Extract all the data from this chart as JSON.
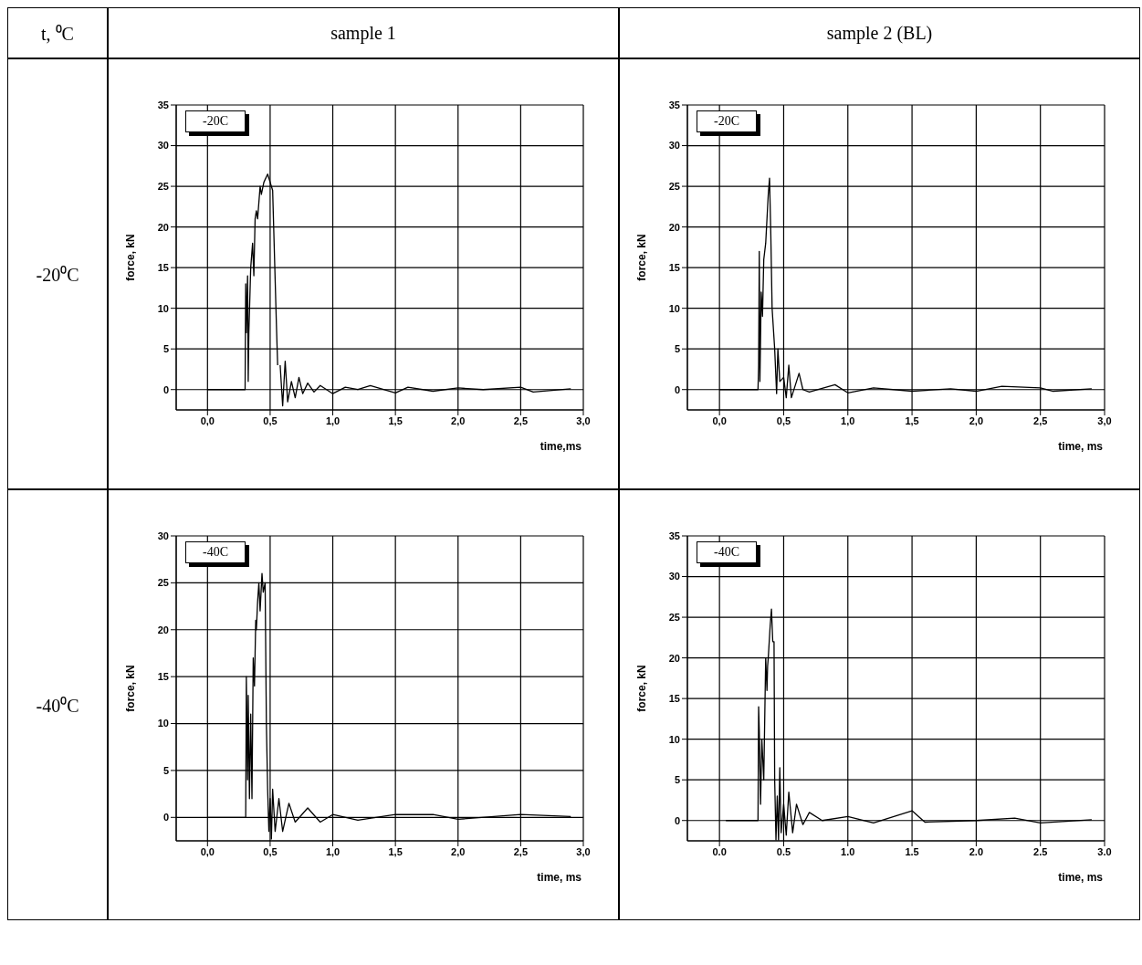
{
  "chart_data": [
    {
      "type": "line",
      "title": "sample 1",
      "xlabel": "time,ms",
      "ylabel": "force, kN",
      "annotations": [
        "-20C",
        "t, ⁰C",
        "-20⁰C"
      ],
      "color": "#000000",
      "grid": true,
      "xlim": [
        -0.25,
        3.0
      ],
      "xticks": [
        {
          "value": 0,
          "label": "0,0"
        },
        {
          "value": 0.5,
          "label": "0,5"
        },
        {
          "value": 1,
          "label": "1,0"
        },
        {
          "value": 1.5,
          "label": "1,5"
        },
        {
          "value": 2,
          "label": "2,0"
        },
        {
          "value": 2.5,
          "label": "2,5"
        },
        {
          "value": 3,
          "label": "3,0"
        }
      ],
      "ylim": [
        -2.5,
        35
      ],
      "yticks": [
        0,
        5,
        10,
        15,
        20,
        25,
        30,
        35
      ],
      "x": [
        0,
        0.1,
        0.2,
        0.3,
        0.305,
        0.31,
        0.32,
        0.325,
        0.33,
        0.345,
        0.36,
        0.37,
        0.38,
        0.39,
        0.4,
        0.42,
        0.43,
        0.45,
        0.48,
        0.5,
        0.52,
        0.55,
        0.56,
        0.57,
        0.58,
        0.6,
        0.62,
        0.64,
        0.67,
        0.7,
        0.73,
        0.76,
        0.8,
        0.85,
        0.9,
        1.0,
        1.1,
        1.2,
        1.3,
        1.5,
        1.6,
        1.8,
        2.0,
        2.2,
        2.5,
        2.6,
        2.9
      ],
      "values": [
        0,
        0,
        0,
        0,
        13,
        7,
        14,
        1,
        7,
        15,
        18,
        14,
        21,
        22,
        21,
        25,
        24,
        25.5,
        26.5,
        25.5,
        24.5,
        8,
        3,
        null,
        3,
        -2,
        3.5,
        -1.5,
        1,
        -1,
        1.5,
        -0.5,
        0.8,
        -0.3,
        0.5,
        -0.5,
        0.3,
        0,
        0.5,
        -0.4,
        0.3,
        -0.2,
        0.2,
        0,
        0.3,
        -0.3,
        0.1
      ]
    },
    {
      "type": "line",
      "title": "sample 2 (BL)",
      "xlabel": "time, ms",
      "ylabel": "force, kN",
      "annotations": [
        "-20C"
      ],
      "color": "#000000",
      "grid": true,
      "xlim": [
        -0.25,
        3.0
      ],
      "xticks": [
        {
          "value": 0,
          "label": "0,0"
        },
        {
          "value": 0.5,
          "label": "0,5"
        },
        {
          "value": 1,
          "label": "1,0"
        },
        {
          "value": 1.5,
          "label": "1,5"
        },
        {
          "value": 2,
          "label": "2,0"
        },
        {
          "value": 2.5,
          "label": "2,5"
        },
        {
          "value": 3,
          "label": "3,0"
        }
      ],
      "ylim": [
        -2.5,
        35
      ],
      "yticks": [
        0,
        5,
        10,
        15,
        20,
        25,
        30,
        35
      ],
      "x": [
        0,
        0.1,
        0.2,
        0.3,
        0.305,
        0.31,
        0.315,
        0.325,
        0.335,
        0.345,
        0.36,
        0.37,
        0.38,
        0.39,
        0.4,
        0.41,
        0.43,
        0.445,
        0.455,
        0.47,
        0.5,
        0.52,
        0.54,
        0.56,
        0.62,
        0.65,
        0.7,
        0.9,
        1.0,
        1.2,
        1.5,
        1.8,
        2.0,
        2.2,
        2.5,
        2.6,
        2.9
      ],
      "values": [
        0,
        0,
        0,
        0,
        3,
        17,
        1,
        12,
        9,
        16,
        18,
        21,
        24,
        26,
        19,
        10,
        5,
        -0.5,
        5,
        1,
        1.5,
        -1,
        3,
        -1,
        2,
        0,
        -0.3,
        0.6,
        -0.4,
        0.2,
        -0.2,
        0.1,
        -0.2,
        0.4,
        0.2,
        -0.2,
        0.1
      ]
    },
    {
      "type": "line",
      "xlabel": "time, ms",
      "ylabel": "force, kN",
      "annotations": [
        "-40C",
        "-40⁰C"
      ],
      "color": "#000000",
      "grid": true,
      "xlim": [
        -0.25,
        3.0
      ],
      "xticks": [
        {
          "value": 0,
          "label": "0,0"
        },
        {
          "value": 0.5,
          "label": "0,5"
        },
        {
          "value": 1,
          "label": "1,0"
        },
        {
          "value": 1.5,
          "label": "1,5"
        },
        {
          "value": 2,
          "label": "2,0"
        },
        {
          "value": 2.5,
          "label": "2,5"
        },
        {
          "value": 3,
          "label": "3,0"
        }
      ],
      "ylim": [
        -2.5,
        30
      ],
      "yticks": [
        0,
        5,
        10,
        15,
        20,
        25,
        30
      ],
      "x": [
        0,
        0.1,
        0.2,
        0.305,
        0.31,
        0.32,
        0.325,
        0.335,
        0.345,
        0.355,
        0.365,
        0.375,
        0.385,
        0.39,
        0.4,
        0.41,
        0.42,
        0.435,
        0.445,
        0.46,
        0.47,
        0.48,
        0.49,
        0.5,
        0.51,
        0.52,
        0.54,
        0.57,
        0.6,
        0.65,
        0.7,
        0.8,
        0.9,
        1.0,
        1.2,
        1.5,
        1.8,
        2.0,
        2.5,
        2.9
      ],
      "values": [
        0,
        0,
        0,
        0,
        15,
        4,
        13,
        2,
        11,
        2,
        17,
        14,
        21,
        20,
        23,
        25,
        22,
        26,
        24,
        25,
        10,
        3,
        -1.5,
        2,
        -2.3,
        3,
        -1.5,
        2,
        -1.5,
        1.5,
        -0.5,
        1,
        -0.5,
        0.3,
        -0.3,
        0.3,
        0.3,
        -0.2,
        0.3,
        0.1
      ]
    },
    {
      "type": "line",
      "xlabel": "time, ms",
      "ylabel": "force, kN",
      "annotations": [
        "-40C"
      ],
      "color": "#000000",
      "grid": true,
      "xlim": [
        -0.25,
        3.0
      ],
      "xticks": [
        {
          "value": 0,
          "label": "0.0"
        },
        {
          "value": 0.5,
          "label": "0.5"
        },
        {
          "value": 1,
          "label": "1.0"
        },
        {
          "value": 1.5,
          "label": "1.5"
        },
        {
          "value": 2,
          "label": "2.0"
        },
        {
          "value": 2.5,
          "label": "2.5"
        },
        {
          "value": 3,
          "label": "3.0"
        }
      ],
      "ylim": [
        -2.5,
        35
      ],
      "yticks": [
        0,
        5,
        10,
        15,
        20,
        25,
        30,
        35
      ],
      "x": [
        0.05,
        0.2,
        0.3,
        0.305,
        0.31,
        0.32,
        0.33,
        0.345,
        0.36,
        0.37,
        0.375,
        0.38,
        0.395,
        0.405,
        0.415,
        0.425,
        0.43,
        0.44,
        0.45,
        0.46,
        0.47,
        0.48,
        0.5,
        0.52,
        0.54,
        0.57,
        0.6,
        0.65,
        0.7,
        0.8,
        1.0,
        1.2,
        1.5,
        1.6,
        2.0,
        2.3,
        2.5,
        2.9
      ],
      "values": [
        0,
        0,
        0,
        14,
        11,
        2,
        10,
        5,
        20,
        16,
        19,
        20,
        24,
        26,
        22,
        22,
        5,
        -2.4,
        3,
        -2.4,
        6.5,
        -1.5,
        2,
        -1.8,
        3.5,
        -1.5,
        2,
        -0.5,
        1,
        0,
        0.5,
        -0.3,
        1.2,
        -0.2,
        0,
        0.3,
        -0.3,
        0.1
      ]
    }
  ]
}
